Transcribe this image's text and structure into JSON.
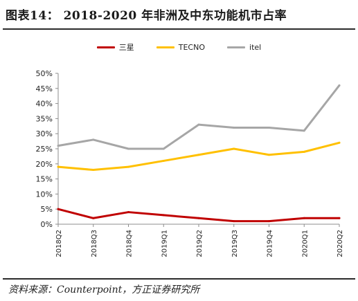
{
  "header": {
    "title": "图表14：  2018-2020 年非洲及中东功能机市占率"
  },
  "footer": {
    "source": "资料来源：Counterpoint，方正证券研究所"
  },
  "chart_data": {
    "type": "line",
    "title": "",
    "xlabel": "",
    "ylabel": "",
    "categories": [
      "2018Q2",
      "2018Q3",
      "2018Q4",
      "2019Q1",
      "2019Q2",
      "2019Q3",
      "2019Q4",
      "2020Q1",
      "2020Q2"
    ],
    "yticks": [
      "0%",
      "5%",
      "10%",
      "15%",
      "20%",
      "25%",
      "30%",
      "35%",
      "40%",
      "45%",
      "50%"
    ],
    "ylim": [
      0,
      50
    ],
    "grid": false,
    "legend_position": "top",
    "series": [
      {
        "name": "三星",
        "color": "#C00000",
        "values": [
          5,
          2,
          4,
          3,
          2,
          1,
          1,
          2,
          2
        ]
      },
      {
        "name": "TECNO",
        "color": "#FFC000",
        "values": [
          19,
          18,
          19,
          21,
          23,
          25,
          23,
          24,
          27
        ]
      },
      {
        "name": "itel",
        "color": "#A6A6A6",
        "values": [
          26,
          28,
          25,
          25,
          33,
          32,
          32,
          31,
          46
        ]
      }
    ]
  }
}
